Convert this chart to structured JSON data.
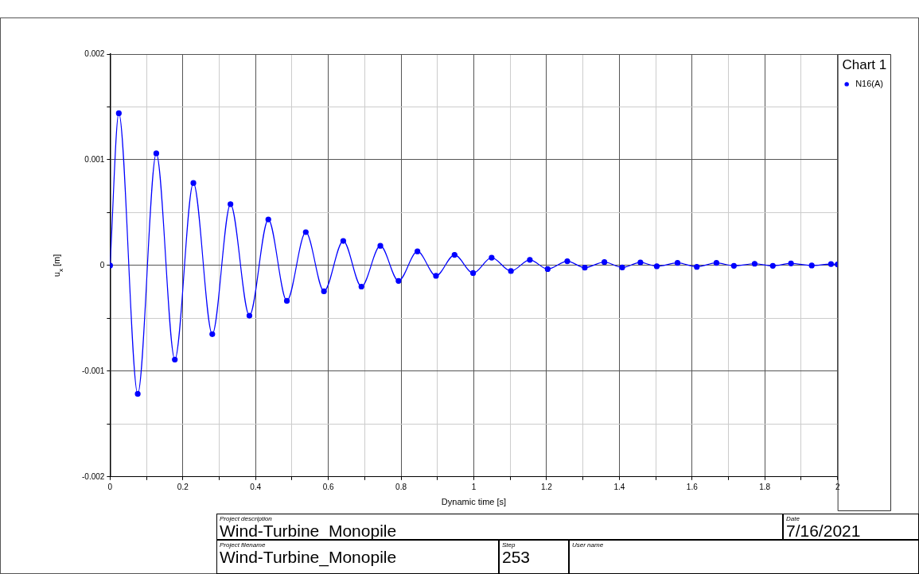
{
  "chart_data": {
    "type": "line",
    "xlabel": "Dynamic time [s]",
    "ylabel": "u$_{x}$ [m]",
    "legend_title": "Chart 1",
    "xlim": [
      0,
      2
    ],
    "ylim": [
      -0.002,
      0.002
    ],
    "xticks": [
      0,
      {
        "value": 0.1,
        "label": null
      },
      0.2,
      {
        "value": 0.3,
        "label": null
      },
      0.4,
      {
        "value": 0.5,
        "label": null
      },
      0.6,
      {
        "value": 0.7,
        "label": null
      },
      0.8,
      {
        "value": 0.9,
        "label": null
      },
      1,
      {
        "value": 1.1,
        "label": null
      },
      1.2,
      {
        "value": 1.3,
        "label": null
      },
      1.4,
      {
        "value": 1.5,
        "label": null
      },
      1.6,
      {
        "value": 1.7,
        "label": null
      },
      1.8,
      {
        "value": 1.9,
        "label": null
      },
      2
    ],
    "yticks": [
      -0.002,
      {
        "value": -0.0015,
        "label": null
      },
      -0.001,
      {
        "value": -0.0005,
        "label": null
      },
      0,
      {
        "value": 0.0005,
        "label": null
      },
      0.001,
      {
        "value": 0.0015,
        "label": null
      },
      0.002
    ],
    "grid": true,
    "legend": "right",
    "marker": "circle",
    "line_style": "solid",
    "series": [
      {
        "name": "N16(A)",
        "color": "#0000ff",
        "x": [
          0,
          0.024,
          0.076,
          0.127,
          0.178,
          0.229,
          0.281,
          0.331,
          0.383,
          0.435,
          0.486,
          0.538,
          0.588,
          0.641,
          0.691,
          0.743,
          0.793,
          0.845,
          0.896,
          0.947,
          0.998,
          1.049,
          1.102,
          1.154,
          1.203,
          1.257,
          1.305,
          1.359,
          1.408,
          1.458,
          1.503,
          1.56,
          1.613,
          1.667,
          1.715,
          1.772,
          1.822,
          1.872,
          1.929,
          1.982,
          2
        ],
        "values": [
          0,
          0.00144,
          -0.001215,
          0.00106,
          -0.00089,
          0.00078,
          -0.00065,
          0.00058,
          -0.000475,
          0.000435,
          -0.000335,
          0.000315,
          -0.000245,
          0.000232,
          -0.0002,
          0.000186,
          -0.000146,
          0.000133,
          -9.8e-05,
          0.0001,
          -7.2e-05,
          7.4e-05,
          -5.3e-05,
          5.3e-05,
          -3.4e-05,
          4e-05,
          -2.1e-05,
          3.2e-05,
          -1.9e-05,
          2.9e-05,
          -8e-06,
          2.4e-05,
          -1.3e-05,
          2.4e-05,
          -3e-06,
          1.6e-05,
          -3e-06,
          1.9e-05,
          0,
          1.3e-05,
          1e-05
        ]
      }
    ],
    "annotations": [
      "Project description",
      "Wind-Turbine_Monopile",
      "Date",
      "7/16/2021",
      "Project filename",
      "Wind-Turbine_Monopile",
      "Step",
      "253",
      "User name"
    ]
  }
}
